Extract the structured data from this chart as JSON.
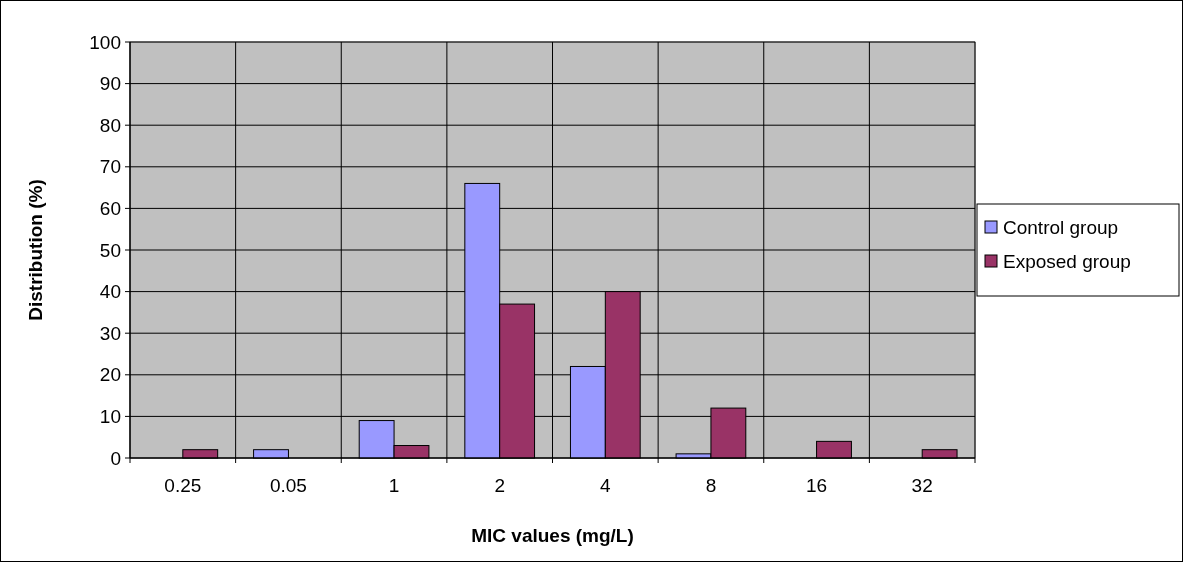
{
  "chart_data": {
    "type": "bar",
    "xlabel": "MIC values (mg/L)",
    "ylabel": "Distribution (%)",
    "categories": [
      "0.25",
      "0.05",
      "1",
      "2",
      "4",
      "8",
      "16",
      "32"
    ],
    "series": [
      {
        "name": "Control group",
        "color": "#9999ff",
        "values": [
          0,
          2,
          9,
          66,
          22,
          1,
          0,
          0
        ]
      },
      {
        "name": "Exposed group",
        "color": "#993366",
        "values": [
          2,
          0,
          3,
          37,
          40,
          12,
          4,
          2
        ]
      }
    ],
    "ylim": [
      0,
      100
    ],
    "yticks": [
      0,
      10,
      20,
      30,
      40,
      50,
      60,
      70,
      80,
      90,
      100
    ],
    "grid": true,
    "legend": "right"
  }
}
